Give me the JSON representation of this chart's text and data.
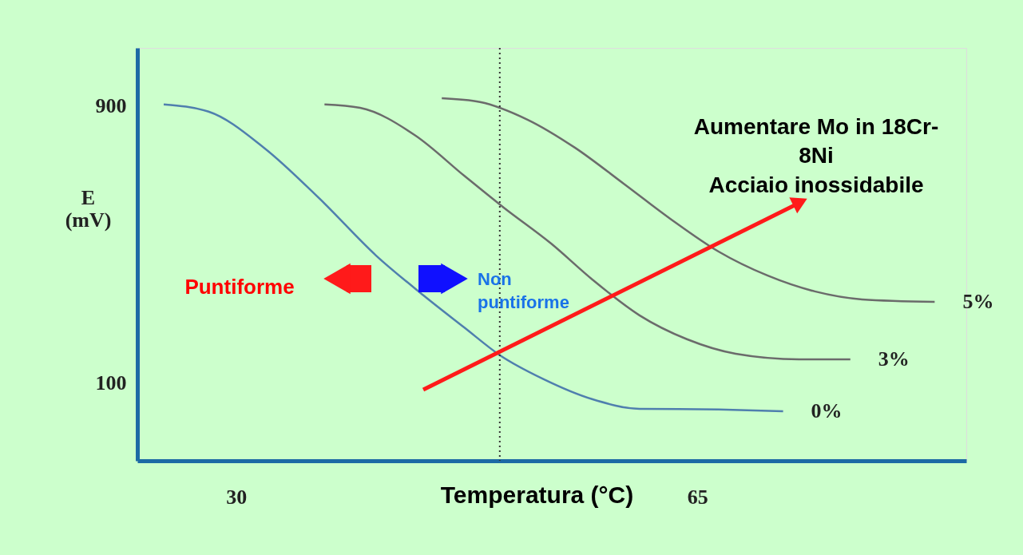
{
  "chart_data": {
    "type": "line",
    "xlabel": "Temperatura (°C)",
    "ylabel": "E (mV)",
    "xlim": [
      22.5,
      85.4
    ],
    "ylim": [
      -124,
      1068
    ],
    "xticks": [
      30,
      65
    ],
    "yticks": [
      100,
      900
    ],
    "grid": false,
    "legend": false,
    "marker": "none",
    "line_style": "solid",
    "series": [
      {
        "name": "0%",
        "color": "#4f7fae",
        "x": [
          24.5,
          27.9,
          32.1,
          36.4,
          40.6,
          44.2,
          47.3,
          50.0,
          53.3,
          57.0,
          60.6,
          66.6,
          71.5
        ],
        "values": [
          905,
          884,
          780,
          630,
          469,
          354,
          261,
          181,
          112,
          54,
          26,
          24,
          19
        ]
      },
      {
        "name": "3%",
        "color": "#6b6b6b",
        "x": [
          36.7,
          39.4,
          43.6,
          47.3,
          50.3,
          53.9,
          57.0,
          60.6,
          64.2,
          67.9,
          72.7,
          76.6
        ],
        "values": [
          905,
          895,
          815,
          699,
          607,
          503,
          400,
          296,
          227,
          185,
          169,
          169
        ]
      },
      {
        "name": "5%",
        "color": "#6b6b6b",
        "x": [
          45.6,
          48.5,
          52.1,
          55.7,
          59.4,
          63.0,
          66.6,
          70.3,
          73.9,
          77.5,
          83.0
        ],
        "values": [
          923,
          912,
          861,
          780,
          676,
          573,
          480,
          411,
          365,
          342,
          335
        ]
      }
    ],
    "ref_lines": [
      {
        "axis": "x",
        "value": 50,
        "color": "#333333",
        "line_style": "dotted"
      }
    ],
    "annotations": [
      "Puntiforme",
      "Non\npuntiforme",
      "Aumentare Mo in 18Cr-\n8Ni\nAcciaio inossidabile"
    ]
  }
}
